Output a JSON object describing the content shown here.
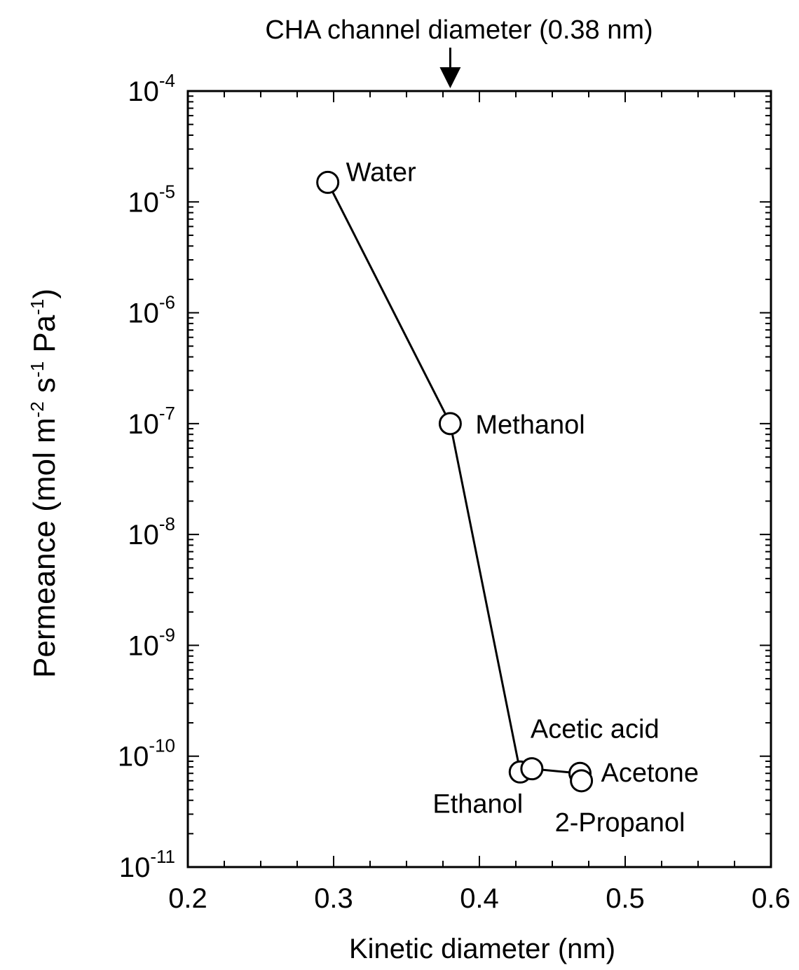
{
  "chart_data": {
    "type": "line",
    "xlabel": "Kinetic diameter (nm)",
    "ylabel": "Permeance (mol m⁻² s⁻¹ Pa⁻¹)",
    "ylabel_parts": {
      "a": "Permeance (mol m",
      "b": "-2",
      "c": " s",
      "d": "-1",
      "e": " Pa",
      "f": "-1",
      "g": ")"
    },
    "xlim": [
      0.2,
      0.6
    ],
    "ylim": [
      1e-11,
      0.0001
    ],
    "yscale": "log",
    "grid": false,
    "legend": "none",
    "x_ticks": [
      "0.2",
      "0.3",
      "0.4",
      "0.5",
      "0.6"
    ],
    "y_ticks": [
      {
        "base": "10",
        "exp": "-4"
      },
      {
        "base": "10",
        "exp": "-5"
      },
      {
        "base": "10",
        "exp": "-6"
      },
      {
        "base": "10",
        "exp": "-7"
      },
      {
        "base": "10",
        "exp": "-8"
      },
      {
        "base": "10",
        "exp": "-9"
      },
      {
        "base": "10",
        "exp": "-10"
      },
      {
        "base": "10",
        "exp": "-11"
      }
    ],
    "annotation": {
      "text": "CHA channel diameter (0.38 nm)",
      "x": 0.38
    },
    "series": [
      {
        "points": [
          {
            "label": "Water",
            "x": 0.296,
            "y": 1.5e-05
          },
          {
            "label": "Methanol",
            "x": 0.38,
            "y": 1e-07
          },
          {
            "label": "Ethanol",
            "x": 0.428,
            "y": 7.2e-11
          },
          {
            "label": "Acetic acid",
            "x": 0.436,
            "y": 7.7e-11
          },
          {
            "label": "Acetone",
            "x": 0.469,
            "y": 7e-11
          },
          {
            "label": "2-Propanol",
            "x": 0.47,
            "y": 6e-11
          }
        ]
      }
    ]
  }
}
